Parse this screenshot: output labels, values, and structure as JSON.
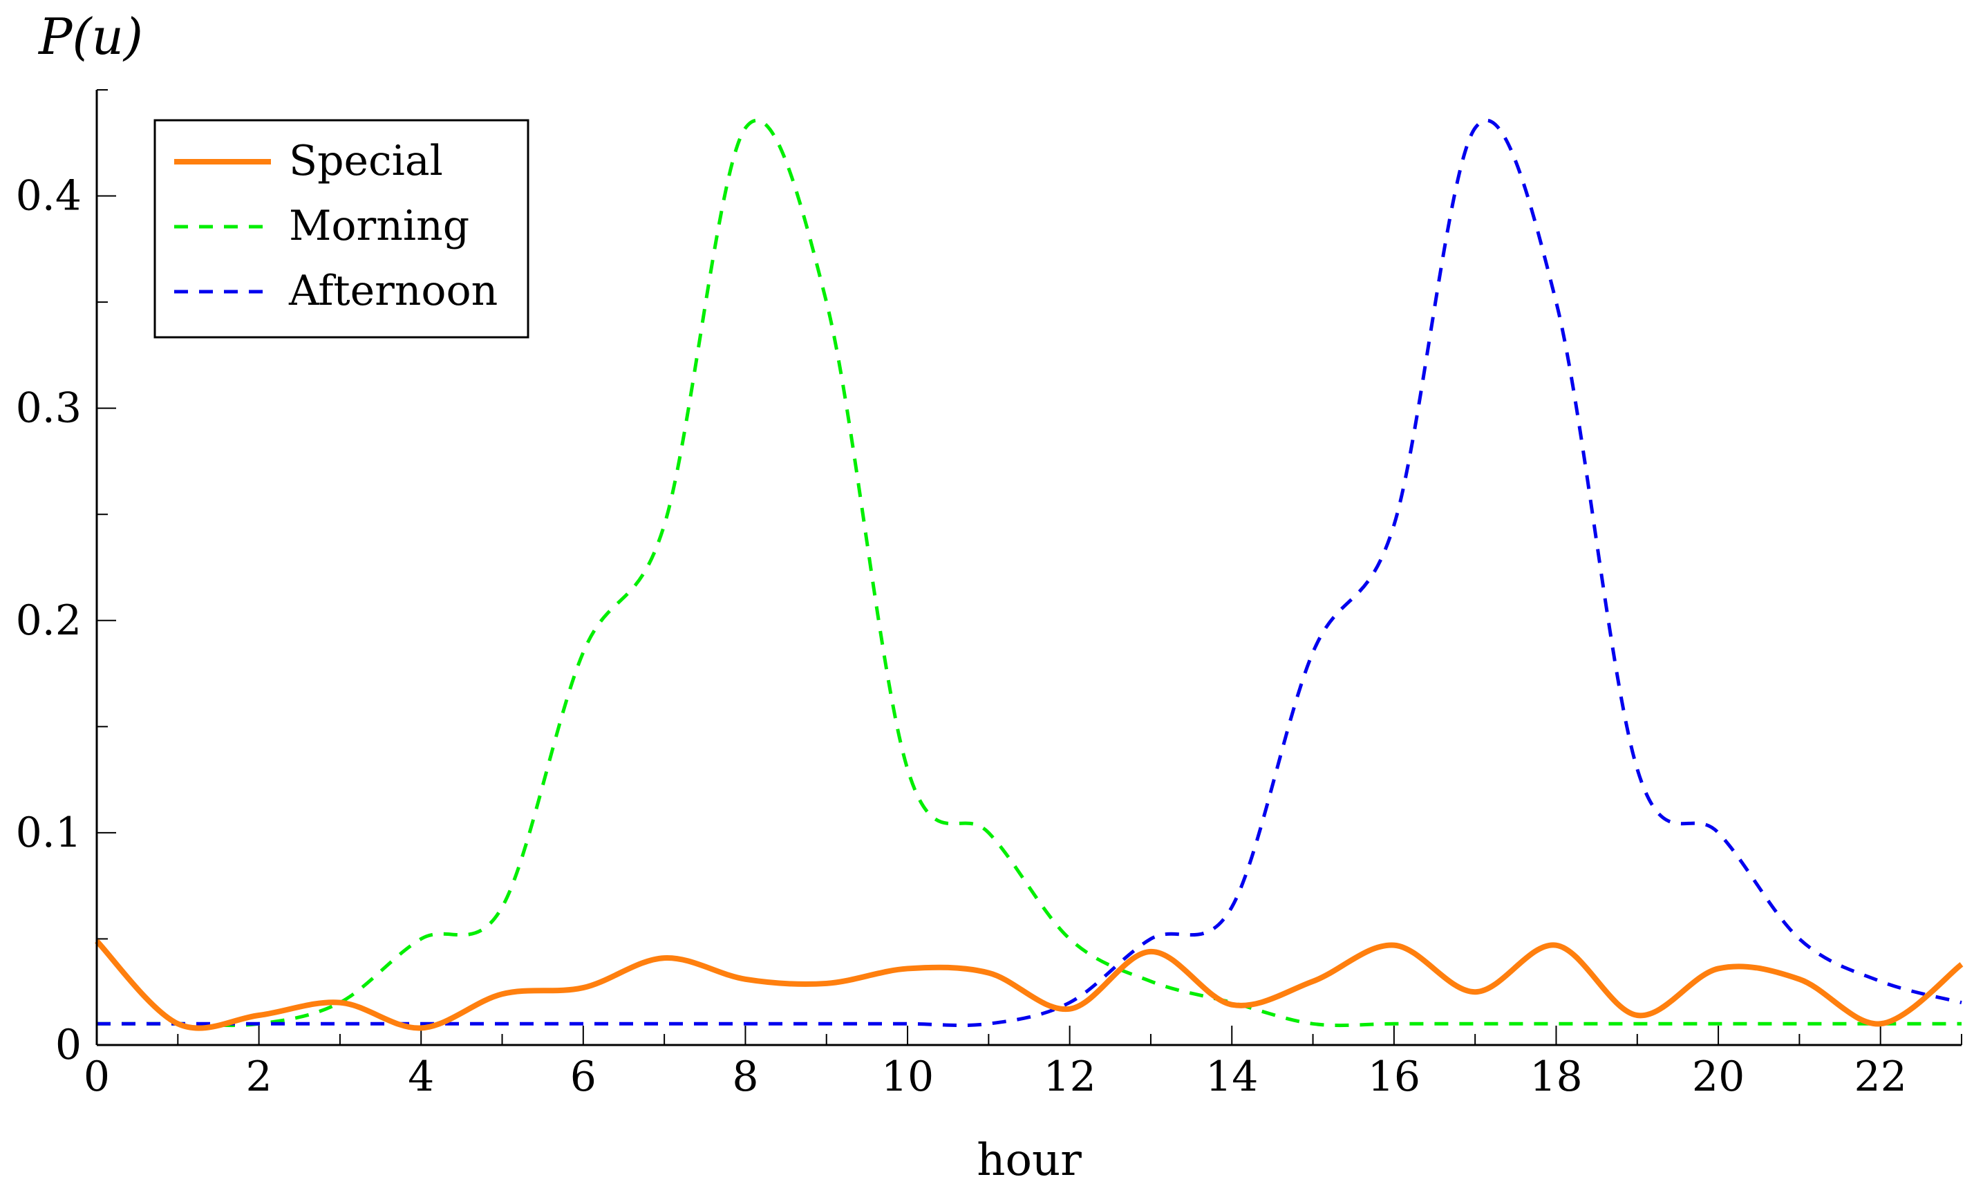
{
  "chart_data": {
    "type": "line",
    "title": "",
    "xlabel": "hour",
    "ylabel": "P(u)",
    "xlim": [
      0,
      23
    ],
    "ylim": [
      0,
      0.45
    ],
    "xticks": [
      0,
      2,
      4,
      6,
      8,
      10,
      12,
      14,
      16,
      18,
      20,
      22
    ],
    "xtick_labels": [
      "0",
      "2",
      "4",
      "6",
      "8",
      "10",
      "12",
      "14",
      "16",
      "18",
      "20",
      "22"
    ],
    "yticks": [
      0,
      0.1,
      0.2,
      0.3,
      0.4
    ],
    "ytick_labels": [
      "0",
      "0.1",
      "0.2",
      "0.3",
      "0.4"
    ],
    "legend_position": "top-left",
    "x": [
      0,
      1,
      2,
      3,
      4,
      5,
      6,
      7,
      8,
      9,
      10,
      11,
      12,
      13,
      14,
      15,
      16,
      17,
      18,
      19,
      20,
      21,
      22,
      23
    ],
    "series": [
      {
        "name": "Special",
        "color": "#ff7f0e",
        "style": "solid",
        "values": [
          0.049,
          0.01,
          0.014,
          0.02,
          0.008,
          0.024,
          0.027,
          0.041,
          0.031,
          0.029,
          0.036,
          0.034,
          0.017,
          0.044,
          0.019,
          0.03,
          0.047,
          0.025,
          0.047,
          0.014,
          0.036,
          0.031,
          0.01,
          0.038
        ]
      },
      {
        "name": "Morning",
        "color": "#00ee00",
        "style": "dashed",
        "values": [
          0.01,
          0.01,
          0.01,
          0.02,
          0.05,
          0.065,
          0.185,
          0.245,
          0.432,
          0.35,
          0.13,
          0.1,
          0.05,
          0.03,
          0.02,
          0.01,
          0.01,
          0.01,
          0.01,
          0.01,
          0.01,
          0.01,
          0.01,
          0.01
        ]
      },
      {
        "name": "Afternoon",
        "color": "#0000ee",
        "style": "dashed",
        "values": [
          0.01,
          0.01,
          0.01,
          0.01,
          0.01,
          0.01,
          0.01,
          0.01,
          0.01,
          0.01,
          0.01,
          0.01,
          0.02,
          0.05,
          0.065,
          0.185,
          0.245,
          0.432,
          0.35,
          0.13,
          0.1,
          0.05,
          0.03,
          0.02
        ]
      }
    ]
  }
}
